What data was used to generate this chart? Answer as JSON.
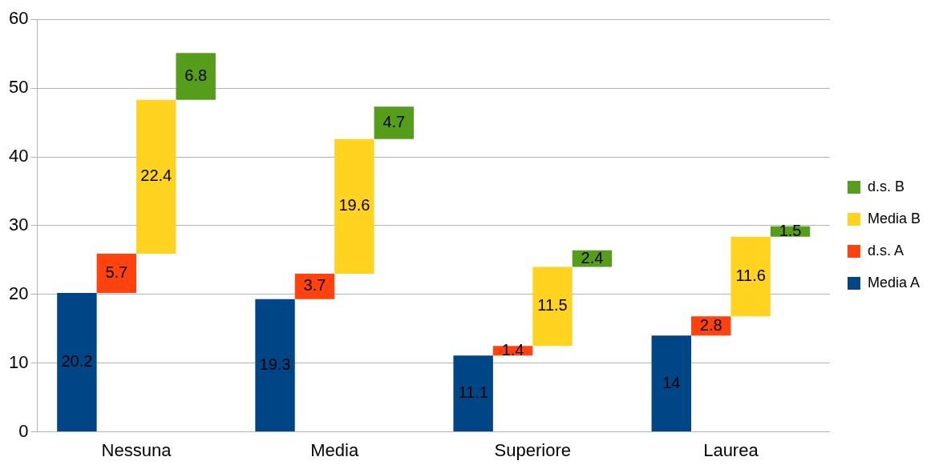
{
  "chart_data": {
    "type": "bar",
    "categories": [
      "Nessuna",
      "Media",
      "Superiore",
      "Laurea"
    ],
    "series": [
      {
        "name": "Media A",
        "color": "#004586",
        "values": [
          20.2,
          19.3,
          11.1,
          14
        ],
        "base": [
          0,
          0,
          0,
          0
        ]
      },
      {
        "name": "d.s. A",
        "color": "#ff420e",
        "values": [
          5.7,
          3.7,
          1.4,
          2.8
        ],
        "base": [
          20.2,
          19.3,
          11.1,
          14
        ]
      },
      {
        "name": "Media B",
        "color": "#ffd320",
        "values": [
          22.4,
          19.6,
          11.5,
          11.6
        ],
        "base": [
          25.9,
          23,
          12.5,
          16.8
        ]
      },
      {
        "name": "d.s. B",
        "color": "#579d1c",
        "values": [
          6.8,
          4.7,
          2.4,
          1.5
        ],
        "base": [
          48.3,
          42.6,
          24,
          28.4
        ]
      }
    ],
    "ylim": [
      0,
      60
    ],
    "yticks": [
      0,
      10,
      20,
      30,
      40,
      50,
      60
    ],
    "grid": "y",
    "legend": "right",
    "data_labels": true
  }
}
